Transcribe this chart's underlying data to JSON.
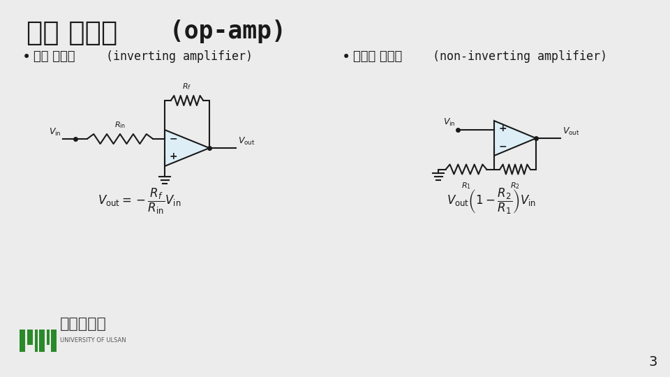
{
  "bg_color": "#ececec",
  "title_korean": "연산 증폭기",
  "title_english": " (op-amp)",
  "bullet1_korean": "반전 증폭기",
  "bullet1_english": "(inverting amplifier)",
  "bullet2_korean": "비반전 증폭기",
  "bullet2_english": "(non-inverting amplifier)",
  "formula1": "$V_{\\mathrm{out}} = -\\dfrac{R_f}{R_{\\mathrm{in}}}V_{\\mathrm{in}}$",
  "formula2": "$V_{\\mathrm{out}}\\left(1-\\dfrac{R_2}{R_1}\\right)V_{\\mathrm{in}}$",
  "page_number": "3",
  "line_color": "#1a1a1a",
  "amp_fill": "#ddeef6",
  "text_color": "#1a1a1a",
  "green_color": "#2a8a2a",
  "logo_korean": "울산대학교"
}
